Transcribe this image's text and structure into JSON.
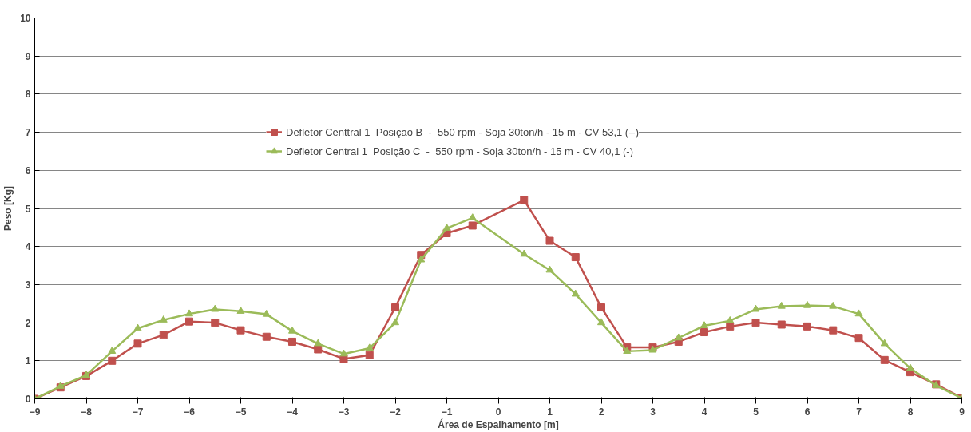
{
  "chart_data": {
    "type": "line",
    "xlabel": "Área de Espalhamento [m]",
    "ylabel": "Peso [Kg]",
    "x": [
      -9,
      -8.5,
      -8,
      -7.5,
      -7,
      -6.5,
      -6,
      -5.5,
      -5,
      -4.5,
      -4,
      -3.5,
      -3,
      -2.5,
      -2,
      -1.5,
      -1,
      -0.5,
      0.5,
      1,
      1.5,
      2,
      2.5,
      3,
      3.5,
      4,
      4.5,
      5,
      5.5,
      6,
      6.5,
      7,
      7.5,
      8,
      8.5,
      9
    ],
    "series": [
      {
        "name": "Defletor Centtral 1  Posição B  -  550 rpm - Soja 30ton/h - 15 m - CV 53,1 (--)",
        "color": "#c0504d",
        "marker": "square",
        "values": [
          0,
          0.3,
          0.6,
          1.0,
          1.45,
          1.68,
          2.03,
          2.0,
          1.8,
          1.63,
          1.5,
          1.3,
          1.05,
          1.15,
          2.4,
          3.78,
          4.35,
          4.55,
          5.22,
          4.15,
          3.72,
          2.4,
          1.35,
          1.35,
          1.5,
          1.75,
          1.9,
          2.0,
          1.95,
          1.9,
          1.8,
          1.6,
          1.02,
          0.7,
          0.38,
          0.03
        ]
      },
      {
        "name": "Defletor Central 1  Posição C  -  550 rpm - Soja 30ton/h - 15 m - CV 40,1 (-)",
        "color": "#9bbb59",
        "marker": "triangle",
        "values": [
          0,
          0.33,
          0.62,
          1.25,
          1.85,
          2.07,
          2.23,
          2.35,
          2.3,
          2.22,
          1.78,
          1.45,
          1.18,
          1.33,
          2.0,
          3.65,
          4.48,
          4.75,
          3.8,
          3.38,
          2.75,
          2.0,
          1.25,
          1.28,
          1.6,
          1.92,
          2.05,
          2.35,
          2.43,
          2.45,
          2.43,
          2.23,
          1.45,
          0.8,
          0.35,
          0.02
        ]
      }
    ],
    "xlim": [
      -9,
      9
    ],
    "xticks": [
      -9,
      -8,
      -7,
      -6,
      -5,
      -4,
      -3,
      -2,
      -1,
      0,
      1,
      2,
      3,
      4,
      5,
      6,
      7,
      8,
      9
    ],
    "ylim": [
      0,
      10
    ],
    "yticks": [
      0,
      1,
      2,
      3,
      4,
      5,
      6,
      7,
      8,
      9,
      10
    ],
    "grid": "y",
    "legend": "top"
  }
}
